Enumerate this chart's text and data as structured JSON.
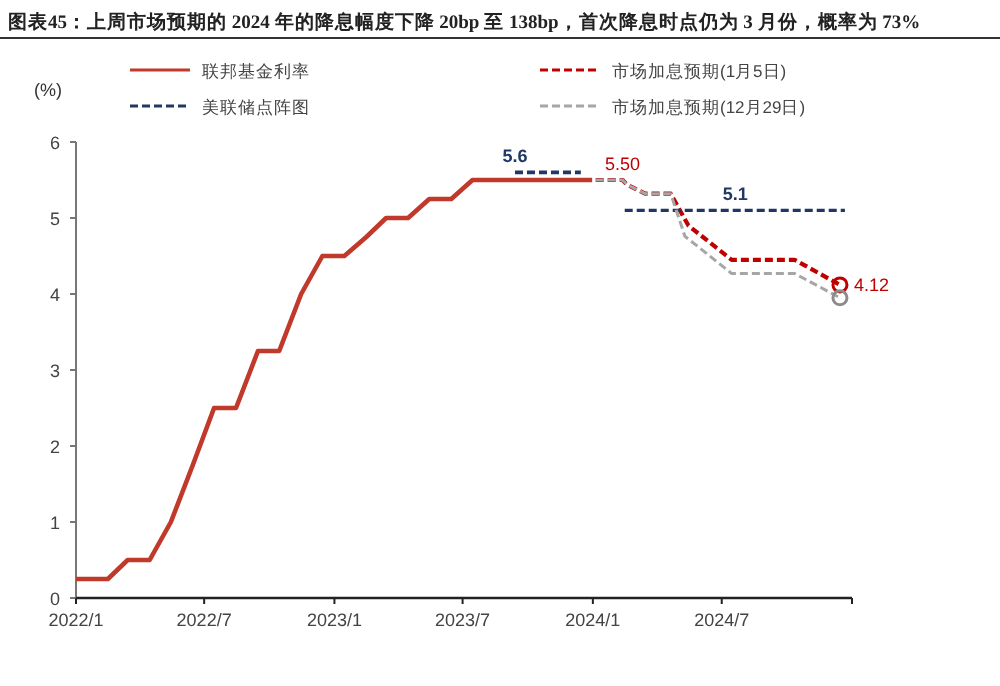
{
  "chart_data": {
    "type": "line",
    "title": "图表45：上周市场预期的 2024 年的降息幅度下降 20bp 至 138bp，首次降息时点仍为 3 月份，概率为 73%",
    "ylabel": "(%)",
    "legend": "top",
    "xlim": [
      "2022-01-01",
      "2025-01-01"
    ],
    "xticks": [
      {
        "value": "2022-01-01",
        "label": "2022/1"
      },
      {
        "value": "2022-07-01",
        "label": "2022/7"
      },
      {
        "value": "2023-01-01",
        "label": "2023/1"
      },
      {
        "value": "2023-07-01",
        "label": "2023/7"
      },
      {
        "value": "2024-01-01",
        "label": "2024/1"
      },
      {
        "value": "2024-07-01",
        "label": "2024/7"
      },
      {
        "value": "2025-01-01",
        "label": null
      }
    ],
    "ylim": [
      0,
      6
    ],
    "yticks": [
      0,
      1,
      2,
      3,
      4,
      5,
      6
    ],
    "series": [
      {
        "name": "联邦基金利率",
        "color": "#c0392b",
        "line_style": "solid",
        "x": [
          "2022-01-01",
          "2022-02-15",
          "2022-03-15",
          "2022-04-15",
          "2022-05-15",
          "2022-06-15",
          "2022-07-15",
          "2022-08-15",
          "2022-09-15",
          "2022-10-15",
          "2022-11-15",
          "2022-12-15",
          "2023-01-15",
          "2023-02-15",
          "2023-03-15",
          "2023-04-15",
          "2023-05-15",
          "2023-06-15",
          "2023-07-15",
          "2023-12-31"
        ],
        "values": [
          0.25,
          0.25,
          0.5,
          0.5,
          1.0,
          1.75,
          2.5,
          2.5,
          3.25,
          3.25,
          4.0,
          4.5,
          4.5,
          4.75,
          5.0,
          5.0,
          5.25,
          5.25,
          5.5,
          5.5
        ]
      },
      {
        "name": "市场加息预期(1月5日)",
        "color": "#c00000",
        "line_style": "dashed",
        "x": [
          "2024-01-05",
          "2024-02-12",
          "2024-02-18",
          "2024-03-15",
          "2024-04-20",
          "2024-05-15",
          "2024-07-15",
          "2024-10-12",
          "2024-12-15"
        ],
        "values": [
          5.5,
          5.5,
          5.44,
          5.32,
          5.32,
          4.9,
          4.45,
          4.45,
          4.12
        ],
        "value_labels": [
          null,
          "5.50",
          null,
          null,
          null,
          null,
          null,
          null,
          "4.12"
        ]
      },
      {
        "name": "美联储点阵图",
        "color": "#1f3864",
        "line_style": "dashed",
        "x": [
          "2023-09-13",
          "2023-12-15"
        ],
        "values": [
          5.6,
          5.6
        ],
        "value_labels": [
          "5.6",
          null
        ]
      },
      {
        "color": "#1f3864",
        "line_style": "dashed",
        "x": [
          "2024-02-15",
          "2024-07-20",
          "2024-12-22"
        ],
        "values": [
          5.1,
          5.1,
          5.1
        ],
        "value_labels": [
          null,
          "5.1",
          null
        ]
      },
      {
        "name": "市场加息预期(12月29日)",
        "color": "#a6a6a6",
        "line_style": "dashed",
        "x": [
          "2024-01-05",
          "2024-02-12",
          "2024-02-18",
          "2024-03-15",
          "2024-04-20",
          "2024-05-10",
          "2024-07-15",
          "2024-10-12",
          "2024-12-15"
        ],
        "values": [
          5.5,
          5.5,
          5.44,
          5.32,
          5.32,
          4.76,
          4.27,
          4.27,
          3.95
        ]
      },
      {
        "type": "scatter",
        "marker": "circle",
        "x": [
          "2024-12-15",
          "2024-12-15"
        ],
        "values": [
          4.12,
          3.95
        ],
        "colors": [
          "#c00000",
          "#8c8c8c"
        ]
      }
    ]
  }
}
